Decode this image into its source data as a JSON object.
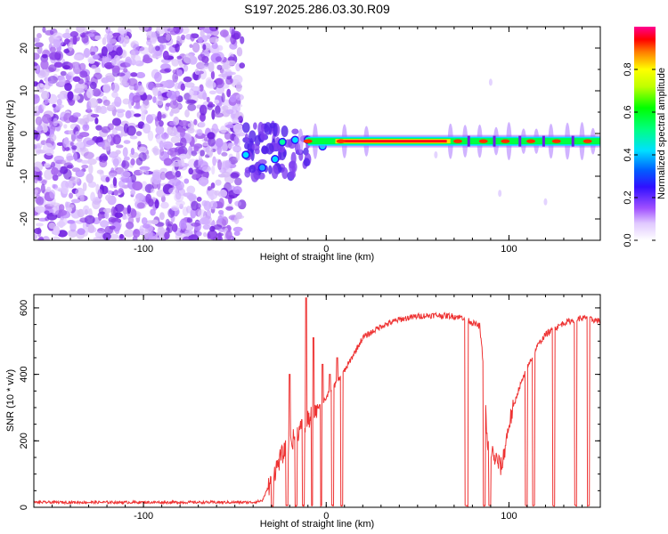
{
  "title": "S197.2025.286.03.30.R09",
  "chart_data": [
    {
      "type": "heatmap",
      "xlabel": "Height of straight line (km)",
      "ylabel": "Frequency (Hz)",
      "xlim": [
        -160,
        150
      ],
      "ylim": [
        -25,
        25
      ],
      "x_ticks": [
        -100,
        0,
        100
      ],
      "y_ticks": [
        -20,
        -10,
        0,
        10,
        20
      ],
      "description_values": {
        "noise_region_x": [
          -160,
          -46
        ],
        "signal_line_frequency_hz": -1.8,
        "signal_start_x": -45,
        "signal_strong_x": [
          -10,
          150
        ]
      },
      "colorbar": {
        "label": "Normalized spectral amplitude",
        "range": [
          0,
          1
        ],
        "ticks": [
          0.0,
          0.2,
          0.4,
          0.6,
          0.8
        ],
        "tick_labels": [
          "0.0",
          "0.2",
          "0.4",
          "0.6",
          "0.8"
        ],
        "colors": [
          "#ffffff",
          "#a050ff",
          "#0030ff",
          "#00e0ff",
          "#00ff00",
          "#ffff00",
          "#ff2000",
          "#ff00a0"
        ]
      }
    },
    {
      "type": "line",
      "xlabel": "Height of straight line (km)",
      "ylabel": "SNR (10 * v/v)",
      "xlim": [
        -160,
        150
      ],
      "ylim": [
        0,
        640
      ],
      "x_ticks": [
        -100,
        0,
        100
      ],
      "y_ticks": [
        0,
        200,
        400,
        600
      ],
      "color": "#ee3333",
      "x": [
        -160,
        -40,
        -35,
        -30,
        -25,
        -20,
        -15,
        -10,
        -5,
        0,
        5,
        10,
        15,
        20,
        30,
        40,
        50,
        60,
        70,
        76,
        80,
        84,
        86,
        88,
        92,
        96,
        100,
        105,
        110,
        115,
        120,
        130,
        140,
        150
      ],
      "values": [
        15,
        15,
        20,
        80,
        150,
        190,
        230,
        260,
        300,
        330,
        370,
        410,
        460,
        510,
        545,
        565,
        575,
        578,
        575,
        570,
        555,
        545,
        430,
        200,
        150,
        120,
        250,
        350,
        420,
        480,
        520,
        555,
        570,
        560
      ]
    }
  ]
}
